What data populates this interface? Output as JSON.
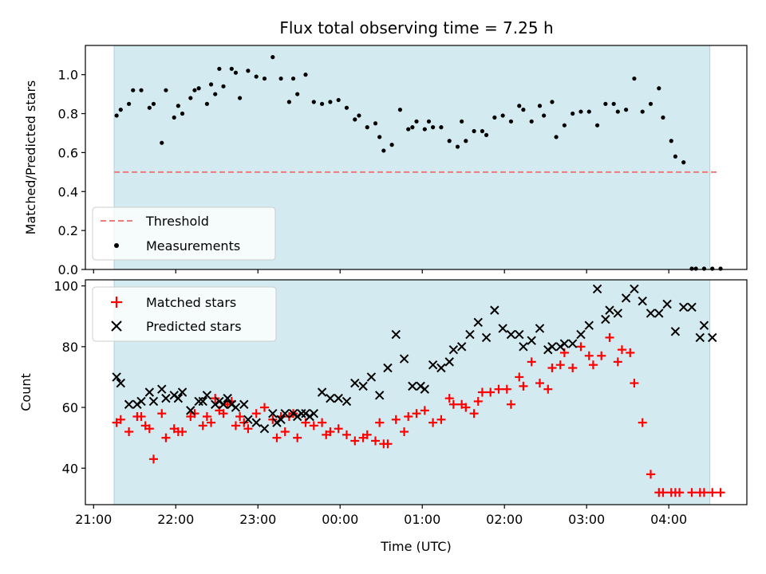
{
  "chart_data": [
    {
      "type": "scatter",
      "title": "Flux total observing time = 7.25 h",
      "ylabel": "Matched/Predicted stars",
      "ylim": [
        0,
        1.15
      ],
      "yticks": [
        0.0,
        0.2,
        0.4,
        0.6,
        0.8,
        1.0
      ],
      "xlim_hours": [
        -3.1,
        4.95
      ],
      "xticks": [
        "21:00",
        "22:00",
        "23:00",
        "00:00",
        "01:00",
        "02:00",
        "03:00",
        "04:00"
      ],
      "xtick_hours": [
        -3,
        -2,
        -1,
        0,
        1,
        2,
        3,
        4
      ],
      "observing_window_hours": [
        -2.75,
        4.5
      ],
      "shade_color": "#d3eaf1",
      "threshold": {
        "name": "Threshold",
        "value": 0.5,
        "x_range_hours": [
          -2.75,
          4.6
        ],
        "color": "#f07b7b"
      },
      "series": [
        {
          "name": "Measurements",
          "marker": "dot",
          "color": "#000000",
          "x": [
            -2.72,
            -2.67,
            -2.57,
            -2.52,
            -2.42,
            -2.32,
            -2.27,
            -2.17,
            -2.12,
            -2.02,
            -1.97,
            -1.92,
            -1.82,
            -1.77,
            -1.72,
            -1.62,
            -1.57,
            -1.52,
            -1.47,
            -1.42,
            -1.32,
            -1.27,
            -1.22,
            -1.12,
            -1.02,
            -0.92,
            -0.82,
            -0.72,
            -0.62,
            -0.57,
            -0.52,
            -0.42,
            -0.32,
            -0.22,
            -0.12,
            -0.02,
            0.08,
            0.18,
            0.23,
            0.33,
            0.43,
            0.48,
            0.53,
            0.63,
            0.73,
            0.83,
            0.88,
            0.93,
            1.03,
            1.08,
            1.13,
            1.23,
            1.33,
            1.43,
            1.48,
            1.53,
            1.63,
            1.73,
            1.78,
            1.88,
            1.98,
            2.08,
            2.18,
            2.23,
            2.33,
            2.43,
            2.48,
            2.58,
            2.63,
            2.73,
            2.83,
            2.93,
            3.03,
            3.13,
            3.23,
            3.33,
            3.38,
            3.48,
            3.58,
            3.68,
            3.78,
            3.88,
            3.93,
            4.03,
            4.08,
            4.18,
            4.28,
            4.33,
            4.43,
            4.53,
            4.63
          ],
          "y": [
            0.79,
            0.82,
            0.85,
            0.92,
            0.92,
            0.83,
            0.85,
            0.65,
            0.92,
            0.78,
            0.84,
            0.8,
            0.88,
            0.92,
            0.93,
            0.85,
            0.95,
            0.9,
            1.03,
            0.94,
            1.03,
            1.01,
            0.88,
            1.02,
            0.99,
            0.98,
            1.09,
            0.98,
            0.86,
            0.98,
            0.9,
            1.0,
            0.86,
            0.85,
            0.86,
            0.87,
            0.83,
            0.77,
            0.79,
            0.73,
            0.75,
            0.68,
            0.61,
            0.64,
            0.82,
            0.72,
            0.73,
            0.76,
            0.72,
            0.76,
            0.73,
            0.73,
            0.66,
            0.63,
            0.76,
            0.66,
            0.71,
            0.71,
            0.69,
            0.78,
            0.79,
            0.76,
            0.84,
            0.82,
            0.76,
            0.84,
            0.79,
            0.86,
            0.68,
            0.74,
            0.8,
            0.81,
            0.81,
            0.74,
            0.85,
            0.85,
            0.81,
            0.82,
            0.98,
            0.81,
            0.85,
            0.93,
            0.78,
            0.66,
            0.58,
            0.55,
            0.0,
            0.0,
            0.0,
            0.0,
            0.0
          ]
        }
      ],
      "legend_position": "lower-left"
    },
    {
      "type": "scatter",
      "xlabel": "Time (UTC)",
      "ylabel": "Count",
      "ylim": [
        28,
        102
      ],
      "yticks": [
        40,
        60,
        80,
        100
      ],
      "xlim_hours": [
        -3.1,
        4.95
      ],
      "xticks": [
        "21:00",
        "22:00",
        "23:00",
        "00:00",
        "01:00",
        "02:00",
        "03:00",
        "04:00"
      ],
      "xtick_hours": [
        -3,
        -2,
        -1,
        0,
        1,
        2,
        3,
        4
      ],
      "observing_window_hours": [
        -2.75,
        4.5
      ],
      "shade_color": "#d3eaf1",
      "series": [
        {
          "name": "Matched stars",
          "marker": "plus",
          "color": "#ff0000",
          "x": [
            -2.72,
            -2.67,
            -2.57,
            -2.47,
            -2.42,
            -2.37,
            -2.32,
            -2.27,
            -2.17,
            -2.12,
            -2.02,
            -1.97,
            -1.92,
            -1.82,
            -1.77,
            -1.67,
            -1.62,
            -1.57,
            -1.52,
            -1.47,
            -1.42,
            -1.37,
            -1.32,
            -1.27,
            -1.22,
            -1.17,
            -1.12,
            -1.02,
            -0.92,
            -0.82,
            -0.77,
            -0.72,
            -0.67,
            -0.62,
            -0.57,
            -0.52,
            -0.42,
            -0.32,
            -0.22,
            -0.17,
            -0.12,
            -0.02,
            0.08,
            0.18,
            0.28,
            0.33,
            0.43,
            0.48,
            0.53,
            0.58,
            0.68,
            0.78,
            0.83,
            0.93,
            1.03,
            1.13,
            1.23,
            1.33,
            1.38,
            1.48,
            1.53,
            1.63,
            1.68,
            1.73,
            1.83,
            1.93,
            2.03,
            2.08,
            2.18,
            2.23,
            2.33,
            2.43,
            2.53,
            2.58,
            2.68,
            2.73,
            2.83,
            2.93,
            3.03,
            3.08,
            3.18,
            3.28,
            3.38,
            3.43,
            3.53,
            3.58,
            3.68,
            3.78,
            3.88,
            3.93,
            4.03,
            4.08,
            4.13,
            4.28,
            4.38,
            4.43,
            4.53,
            4.63
          ],
          "y": [
            55,
            56,
            52,
            57,
            57,
            54,
            53,
            43,
            58,
            50,
            53,
            52,
            52,
            57,
            58,
            54,
            57,
            55,
            63,
            59,
            58,
            61,
            62,
            54,
            57,
            55,
            53,
            58,
            60,
            56,
            50,
            57,
            52,
            57,
            58,
            50,
            55,
            54,
            55,
            51,
            52,
            53,
            51,
            49,
            50,
            51,
            49,
            55,
            48,
            48,
            56,
            52,
            57,
            58,
            59,
            55,
            56,
            63,
            61,
            61,
            60,
            58,
            62,
            65,
            65,
            66,
            66,
            61,
            70,
            67,
            75,
            68,
            66,
            73,
            74,
            78,
            73,
            80,
            77,
            74,
            77,
            83,
            75,
            79,
            78,
            68,
            55,
            38,
            32,
            32,
            32,
            32,
            32,
            32,
            32,
            32,
            32,
            32
          ]
        },
        {
          "name": "Predicted stars",
          "marker": "x",
          "color": "#000000",
          "x": [
            -2.72,
            -2.67,
            -2.57,
            -2.47,
            -2.42,
            -2.32,
            -2.27,
            -2.17,
            -2.12,
            -2.02,
            -1.97,
            -1.92,
            -1.82,
            -1.72,
            -1.67,
            -1.62,
            -1.52,
            -1.47,
            -1.42,
            -1.37,
            -1.32,
            -1.27,
            -1.17,
            -1.12,
            -1.02,
            -0.92,
            -0.82,
            -0.77,
            -0.72,
            -0.67,
            -0.57,
            -0.52,
            -0.47,
            -0.42,
            -0.37,
            -0.32,
            -0.22,
            -0.12,
            -0.02,
            0.08,
            0.18,
            0.28,
            0.38,
            0.48,
            0.58,
            0.68,
            0.78,
            0.88,
            0.98,
            1.03,
            1.13,
            1.23,
            1.33,
            1.38,
            1.48,
            1.58,
            1.68,
            1.78,
            1.88,
            1.98,
            2.08,
            2.18,
            2.23,
            2.33,
            2.43,
            2.53,
            2.58,
            2.68,
            2.73,
            2.83,
            2.93,
            3.03,
            3.13,
            3.23,
            3.28,
            3.38,
            3.48,
            3.58,
            3.68,
            3.78,
            3.88,
            3.98,
            4.08,
            4.18,
            4.28,
            4.38,
            4.43,
            4.53
          ],
          "y": [
            70,
            68,
            61,
            61,
            62,
            65,
            62,
            66,
            63,
            64,
            63,
            65,
            59,
            62,
            62,
            64,
            61,
            62,
            61,
            63,
            61,
            60,
            61,
            56,
            55,
            53,
            58,
            55,
            56,
            58,
            58,
            57,
            58,
            58,
            57,
            58,
            65,
            63,
            63,
            62,
            68,
            67,
            70,
            64,
            73,
            84,
            76,
            67,
            67,
            66,
            74,
            73,
            75,
            79,
            80,
            84,
            88,
            83,
            92,
            86,
            84,
            84,
            80,
            82,
            86,
            79,
            80,
            80,
            81,
            81,
            84,
            87,
            99,
            89,
            92,
            91,
            96,
            99,
            95,
            91,
            91,
            94,
            85,
            93,
            93,
            83,
            87,
            83
          ]
        }
      ],
      "legend_position": "upper-left"
    }
  ]
}
